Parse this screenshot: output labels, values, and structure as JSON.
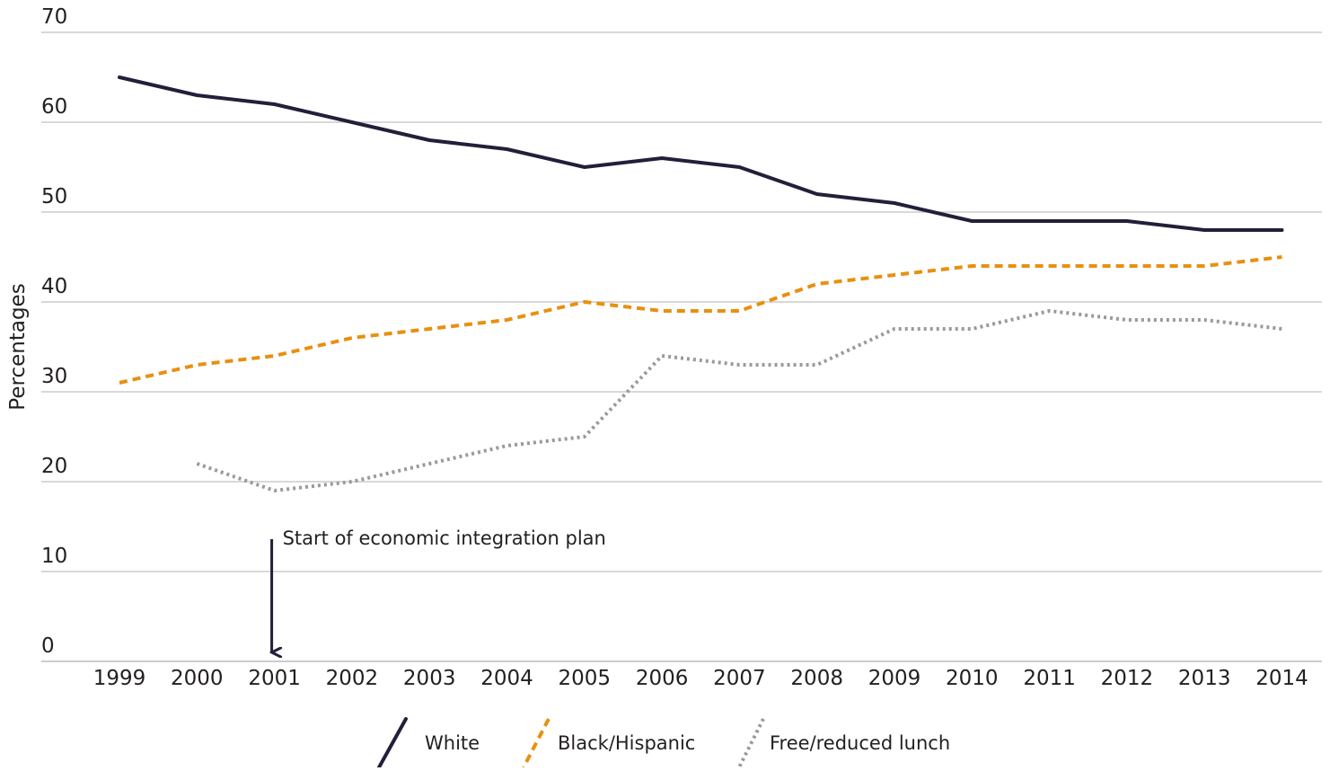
{
  "chart_data": {
    "type": "line",
    "title": "",
    "xlabel": "",
    "ylabel": "Percentages",
    "ylim": [
      0,
      70
    ],
    "y_ticks": [
      0,
      10,
      20,
      30,
      40,
      50,
      60,
      70
    ],
    "grid": "horizontal",
    "legend_position": "bottom-center",
    "x": [
      "1999",
      "2000",
      "2001",
      "2002",
      "2003",
      "2004",
      "2005",
      "2006",
      "2007",
      "2008",
      "2009",
      "2010",
      "2011",
      "2012",
      "2013",
      "2014"
    ],
    "series": [
      {
        "name": "White",
        "color": "#231f3a",
        "style": "solid",
        "values": [
          65,
          63,
          62,
          60,
          58,
          57,
          55,
          56,
          55,
          52,
          51,
          49,
          49,
          49,
          48,
          48
        ]
      },
      {
        "name": "Black/Hispanic",
        "color": "#e8900f",
        "style": "dashed",
        "values": [
          31,
          33,
          34,
          36,
          37,
          38,
          40,
          39,
          39,
          42,
          43,
          44,
          44,
          44,
          44,
          45
        ]
      },
      {
        "name": "Free/reduced lunch",
        "color": "#9a9a9a",
        "style": "dotted",
        "values": [
          null,
          22,
          19,
          20,
          22,
          24,
          25,
          34,
          33,
          33,
          37,
          37,
          39,
          38,
          38,
          37
        ]
      }
    ],
    "annotations": [
      {
        "text": "Start of economic integration plan",
        "x": "2001",
        "arrow": "down"
      }
    ]
  },
  "colors": {
    "grid": "#cccccc",
    "axis": "#231f20",
    "text": "#231f20"
  }
}
